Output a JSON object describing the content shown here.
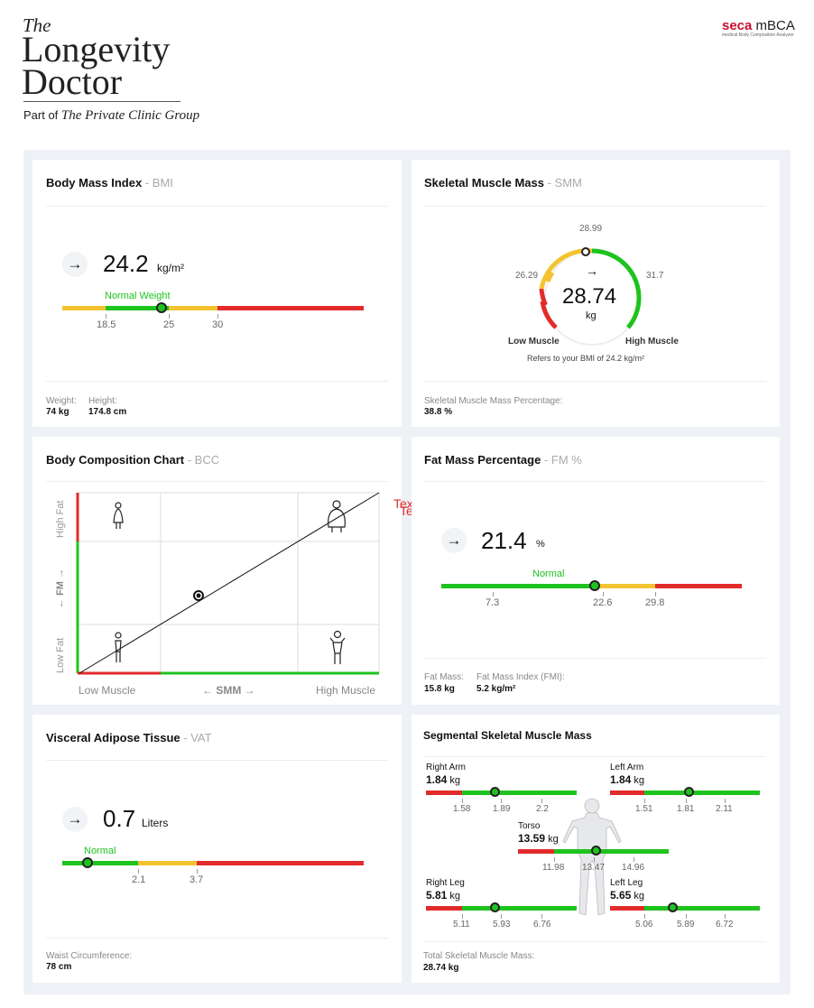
{
  "brand": {
    "the": "The",
    "line1": "Longevity",
    "line2": "Doctor",
    "part_of": "Part of",
    "group": "The Private Clinic Group"
  },
  "seca": {
    "name": "seca",
    "product": "mBCA",
    "sub": "medical Body Composition Analyzer"
  },
  "bmi": {
    "title": "Body Mass Index",
    "abbr": "- BMI",
    "value": "24.2",
    "unit": "kg/m²",
    "category": "Normal Weight",
    "ticks": [
      "18.5",
      "25",
      "30"
    ],
    "weight_label": "Weight:",
    "weight": "74 kg",
    "height_label": "Height:",
    "height": "174.8 cm"
  },
  "smm": {
    "title": "Skeletal Muscle Mass",
    "abbr": "- SMM",
    "value": "28.74",
    "unit": "kg",
    "top": "28.99",
    "left": "26.29",
    "right": "31.7",
    "low": "Low Muscle",
    "high": "High Muscle",
    "note": "Refers to your BMI of 24.2 kg/m²",
    "pct_label": "Skeletal Muscle Mass Percentage:",
    "pct": "38.8 %"
  },
  "bcc": {
    "title": "Body Composition Chart",
    "abbr": "- BCC",
    "high_fat": "High Fat",
    "fm": "← FM →",
    "low_fat": "Low Fat",
    "low_muscle": "Low Muscle",
    "smm": "← SMM →",
    "high_muscle": "High Muscle",
    "overlay1": "Text",
    "overlay2": "Text"
  },
  "fm": {
    "title": "Fat Mass Percentage",
    "abbr": "- FM %",
    "value": "21.4",
    "unit": "%",
    "category": "Normal",
    "ticks": [
      "7.3",
      "22.6",
      "29.8"
    ],
    "mass_label": "Fat Mass:",
    "mass": "15.8 kg",
    "fmi_label": "Fat Mass Index (FMI):",
    "fmi": "5.2 kg/m²"
  },
  "vat": {
    "title": "Visceral Adipose Tissue",
    "abbr": "- VAT",
    "value": "0.7",
    "unit": "Liters",
    "category": "Normal",
    "ticks": [
      "2.1",
      "3.7"
    ],
    "waist_label": "Waist Circumference:",
    "waist": "78 cm"
  },
  "ssm": {
    "title": "Segmental Skeletal Muscle Mass",
    "unit": "kg",
    "right_arm": {
      "name": "Right Arm",
      "value": "1.84",
      "ticks": [
        "1.58",
        "1.89",
        "2.2"
      ]
    },
    "left_arm": {
      "name": "Left Arm",
      "value": "1.84",
      "ticks": [
        "1.51",
        "1.81",
        "2.11"
      ]
    },
    "torso": {
      "name": "Torso",
      "value": "13.59",
      "ticks": [
        "11.98",
        "13.47",
        "14.96"
      ]
    },
    "right_leg": {
      "name": "Right Leg",
      "value": "5.81",
      "ticks": [
        "5.11",
        "5.93",
        "6.76"
      ]
    },
    "left_leg": {
      "name": "Left Leg",
      "value": "5.65",
      "ticks": [
        "5.06",
        "5.89",
        "6.72"
      ]
    },
    "total_label": "Total Skeletal Muscle Mass:",
    "total": "28.74 kg"
  },
  "arrow": "→",
  "colors": {
    "green": "#1ec31e",
    "yellow": "#f4c430",
    "red": "#e22b2b"
  }
}
